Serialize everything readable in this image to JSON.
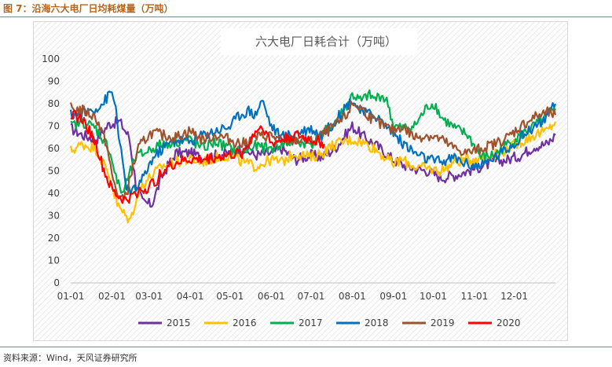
{
  "figure": {
    "title": "图 7：沿海六大电厂日均耗煤量（万吨）",
    "source": "资料来源：Wind，天风证券研究所"
  },
  "chart_data": {
    "type": "line",
    "title": "六大电厂日耗合计（万吨）",
    "xlabel": "",
    "ylabel": "",
    "ylim": [
      0,
      100
    ],
    "yticks": [
      0,
      10,
      20,
      30,
      40,
      50,
      60,
      70,
      80,
      90,
      100
    ],
    "xlim": [
      1,
      366
    ],
    "xtick_labels": [
      "01-01",
      "02-01",
      "03-01",
      "04-01",
      "05-01",
      "06-01",
      "07-01",
      "08-01",
      "09-01",
      "10-01",
      "11-01",
      "12-01"
    ],
    "xtick_days": [
      1,
      32,
      60,
      91,
      121,
      152,
      182,
      213,
      244,
      274,
      305,
      335
    ],
    "x_unit": "day of year",
    "grid": false,
    "background": "diagonal hatch",
    "legend_position": "bottom",
    "series": [
      {
        "name": "2015",
        "color": "#7030a0",
        "x": [
          1,
          10,
          20,
          30,
          38,
          45,
          50,
          55,
          62,
          70,
          80,
          91,
          100,
          110,
          121,
          130,
          140,
          152,
          160,
          170,
          182,
          190,
          200,
          213,
          220,
          230,
          244,
          250,
          260,
          270,
          280,
          290,
          300,
          310,
          320,
          330,
          340,
          350,
          360,
          366
        ],
        "y": [
          69,
          66,
          64,
          71,
          72,
          65,
          45,
          36,
          35,
          48,
          58,
          58,
          56,
          57,
          58,
          60,
          57,
          58,
          60,
          55,
          57,
          56,
          60,
          70,
          66,
          62,
          55,
          53,
          51,
          50,
          47,
          48,
          50,
          52,
          54,
          55,
          57,
          61,
          62,
          66
        ]
      },
      {
        "name": "2016",
        "color": "#ffc000",
        "x": [
          1,
          10,
          20,
          30,
          36,
          42,
          46,
          50,
          55,
          62,
          70,
          80,
          91,
          100,
          110,
          121,
          130,
          140,
          152,
          160,
          170,
          182,
          190,
          200,
          213,
          220,
          230,
          244,
          250,
          260,
          270,
          280,
          290,
          300,
          310,
          320,
          330,
          340,
          350,
          360,
          366
        ],
        "y": [
          59,
          62,
          60,
          48,
          35,
          30,
          28,
          37,
          44,
          48,
          52,
          54,
          55,
          54,
          56,
          57,
          54,
          52,
          55,
          54,
          58,
          56,
          58,
          62,
          64,
          63,
          60,
          53,
          55,
          52,
          51,
          50,
          54,
          55,
          56,
          57,
          60,
          63,
          66,
          68,
          72
        ]
      },
      {
        "name": "2017",
        "color": "#00b050",
        "x": [
          1,
          10,
          20,
          30,
          36,
          40,
          45,
          50,
          56,
          62,
          70,
          80,
          91,
          100,
          110,
          121,
          130,
          140,
          152,
          160,
          170,
          182,
          190,
          200,
          208,
          213,
          220,
          225,
          230,
          235,
          240,
          244,
          250,
          260,
          270,
          275,
          280,
          290,
          300,
          310,
          320,
          330,
          340,
          350,
          360,
          366
        ],
        "y": [
          70,
          72,
          69,
          60,
          45,
          40,
          48,
          56,
          58,
          60,
          62,
          63,
          64,
          60,
          63,
          60,
          58,
          61,
          60,
          62,
          63,
          62,
          66,
          72,
          78,
          84,
          81,
          84,
          82,
          84,
          80,
          70,
          69,
          70,
          79,
          80,
          74,
          69,
          66,
          56,
          57,
          62,
          66,
          70,
          74,
          77
        ]
      },
      {
        "name": "2018",
        "color": "#0070c0",
        "x": [
          1,
          10,
          20,
          25,
          30,
          32,
          35,
          38,
          42,
          46,
          50,
          55,
          62,
          70,
          80,
          91,
          100,
          110,
          121,
          128,
          135,
          140,
          145,
          152,
          160,
          170,
          182,
          190,
          200,
          207,
          213,
          220,
          230,
          244,
          250,
          260,
          270,
          280,
          290,
          300,
          310,
          320,
          330,
          340,
          350,
          360,
          366
        ],
        "y": [
          75,
          76,
          78,
          80,
          84,
          85,
          78,
          62,
          45,
          40,
          42,
          46,
          55,
          60,
          64,
          63,
          66,
          68,
          70,
          75,
          77,
          75,
          82,
          70,
          65,
          67,
          69,
          66,
          72,
          78,
          82,
          76,
          75,
          67,
          63,
          58,
          55,
          54,
          56,
          53,
          52,
          56,
          60,
          65,
          70,
          74,
          80
        ]
      },
      {
        "name": "2019",
        "color": "#a0522d",
        "x": [
          1,
          10,
          20,
          28,
          32,
          36,
          40,
          44,
          48,
          52,
          58,
          62,
          70,
          80,
          91,
          100,
          110,
          121,
          130,
          140,
          152,
          160,
          170,
          182,
          190,
          200,
          208,
          213,
          220,
          230,
          244,
          250,
          260,
          270,
          280,
          290,
          300,
          310,
          320,
          330,
          340,
          350,
          360,
          366
        ],
        "y": [
          78,
          77,
          74,
          62,
          48,
          40,
          37,
          42,
          52,
          60,
          65,
          67,
          66,
          65,
          68,
          64,
          66,
          64,
          62,
          65,
          66,
          63,
          64,
          63,
          66,
          70,
          74,
          80,
          78,
          72,
          68,
          70,
          65,
          66,
          64,
          60,
          58,
          60,
          62,
          65,
          70,
          74,
          76,
          75
        ]
      },
      {
        "name": "2020",
        "color": "#ff0000",
        "x": [
          1,
          5,
          10,
          15,
          20,
          25,
          30,
          34,
          38,
          42,
          46,
          52,
          58,
          62,
          66,
          70,
          76,
          82,
          91,
          100,
          110,
          121,
          130,
          135,
          140,
          146,
          152,
          160,
          170,
          176,
          182,
          188,
          192
        ],
        "y": [
          76,
          74,
          73,
          68,
          62,
          52,
          44,
          40,
          38,
          37,
          38,
          41,
          42,
          44,
          46,
          50,
          52,
          54,
          55,
          55,
          56,
          57,
          58,
          62,
          68,
          70,
          62,
          64,
          66,
          65,
          64,
          63,
          62
        ]
      }
    ]
  }
}
